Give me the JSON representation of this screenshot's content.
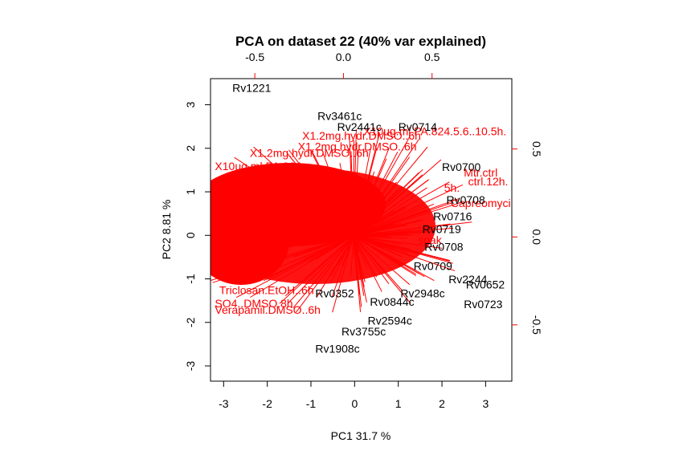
{
  "chart_data": {
    "type": "scatter",
    "title": "PCA on dataset 22 (40% var explained)",
    "xlabel": "PC1  31.7 %",
    "ylabel": "PC2  8.81 %",
    "xlim": [
      -3.3,
      3.6
    ],
    "ylim": [
      -3.35,
      3.6
    ],
    "x_ticks": [
      -3,
      -2,
      -1,
      0,
      1,
      2,
      3
    ],
    "y_ticks": [
      -3,
      -2,
      -1,
      0,
      1,
      2,
      3
    ],
    "secondary_x_ticks": [
      -0.5,
      0.0,
      0.5
    ],
    "secondary_y_ticks": [
      -0.5,
      0.0,
      0.5
    ],
    "secondary_xlim": [
      -0.75,
      0.95
    ],
    "secondary_ylim": [
      -0.82,
      0.9
    ],
    "gene_labels": [
      {
        "label": "Rv1221",
        "x": -2.8,
        "y": 3.3
      },
      {
        "label": "Rv3461c",
        "x": -0.85,
        "y": 2.65
      },
      {
        "label": "Rv2441c",
        "x": -0.4,
        "y": 2.4
      },
      {
        "label": "Rv0714",
        "x": 1.0,
        "y": 2.4
      },
      {
        "label": "Rv0700",
        "x": 2.0,
        "y": 1.48
      },
      {
        "label": "Rv0708",
        "x": 2.1,
        "y": 0.72
      },
      {
        "label": "Rv0716",
        "x": 1.8,
        "y": 0.35
      },
      {
        "label": "Rv0719",
        "x": 1.55,
        "y": 0.05
      },
      {
        "label": "Rv0708",
        "x": 1.6,
        "y": -0.35
      },
      {
        "label": "Rv0709",
        "x": 1.35,
        "y": -0.8
      },
      {
        "label": "Rv2244",
        "x": 2.15,
        "y": -1.1
      },
      {
        "label": "Rv0652",
        "x": 2.55,
        "y": -1.22
      },
      {
        "label": "Rv0723",
        "x": 2.5,
        "y": -1.67
      },
      {
        "label": "Rv2948c",
        "x": 1.05,
        "y": -1.42
      },
      {
        "label": "Rv0844c",
        "x": 0.35,
        "y": -1.62
      },
      {
        "label": "Rv0352",
        "x": -0.9,
        "y": -1.42
      },
      {
        "label": "Rv2594c",
        "x": 0.3,
        "y": -2.05
      },
      {
        "label": "Rv3755c",
        "x": -0.3,
        "y": -2.3
      },
      {
        "label": "Rv1908c",
        "x": -0.9,
        "y": -2.7
      }
    ],
    "variable_labels": [
      {
        "label": "X1.2mg.hydr.DMSO..6h",
        "x": -1.2,
        "y": 2.2
      },
      {
        "label": "X10ug.ml.PA.824.5.6..10.5h.",
        "x": 0.2,
        "y": 2.3
      },
      {
        "label": "X1.2mg.hydr.DMSO..6h",
        "x": -1.3,
        "y": 1.95
      },
      {
        "label": "X1.2mg.hydr.DMSO..6h",
        "x": -2.4,
        "y": 1.8
      },
      {
        "label": "X10ug.ml.PA.824",
        "x": -3.2,
        "y": 1.5
      },
      {
        "label": "Mtr.ctrl",
        "x": 2.5,
        "y": 1.35
      },
      {
        "label": "ctrl.12h.",
        "x": 2.6,
        "y": 1.15
      },
      {
        "label": "5h.",
        "x": 2.05,
        "y": 1.0
      },
      {
        "label": "Capreomycin.spak",
        "x": 2.2,
        "y": 0.65
      },
      {
        "label": "spak",
        "x": 1.45,
        "y": -0.2
      },
      {
        "label": "Triclosan.EtOH..6h",
        "x": -3.1,
        "y": -1.35
      },
      {
        "label": "Verapamil.DMSO..6h",
        "x": -3.2,
        "y": -1.8
      },
      {
        "label": "SO4..DMSO.8h",
        "x": -3.2,
        "y": -1.65
      }
    ]
  }
}
